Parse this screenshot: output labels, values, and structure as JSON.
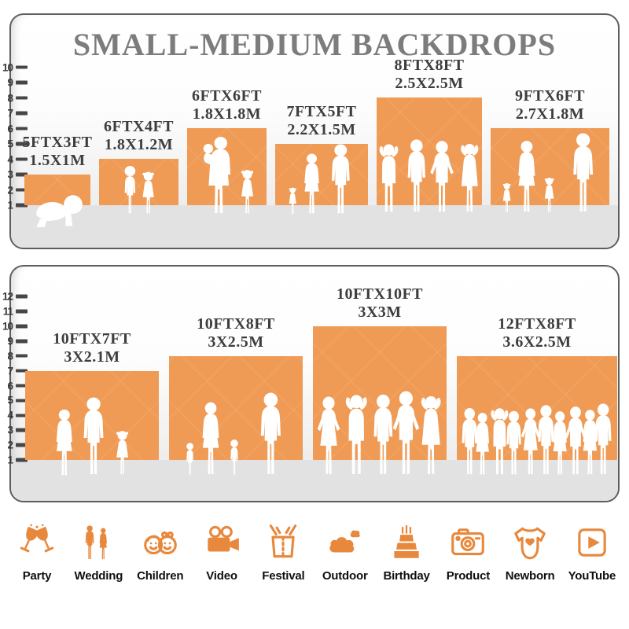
{
  "title": "SMALL-MEDIUM BACKDROPS",
  "colors": {
    "backdrop_orange": "#EF9B55",
    "icon_orange": "#E8883C",
    "title_gray": "#7C7C7C",
    "label_dark": "#3D3D3D"
  },
  "panels": [
    {
      "name": "small-medium-sizes",
      "ruler_ticks": [
        10,
        9,
        8,
        7,
        6,
        5,
        4,
        3,
        2,
        1
      ],
      "backdrops": [
        {
          "size_ft": "5FTX3FT",
          "size_m": "1.5X1M",
          "w_ft": 5,
          "h_ft": 3,
          "people": "crawling-baby"
        },
        {
          "size_ft": "6FTX4FT",
          "size_m": "1.8X1.2M",
          "w_ft": 6,
          "h_ft": 4,
          "people": "two-children"
        },
        {
          "size_ft": "6FTX6FT",
          "size_m": "1.8X1.8M",
          "w_ft": 6,
          "h_ft": 6,
          "people": "mother-with-baby-and-girl"
        },
        {
          "size_ft": "7FTX5FT",
          "size_m": "2.2X1.5M",
          "w_ft": 7,
          "h_ft": 5,
          "people": "family-of-three"
        },
        {
          "size_ft": "8FTX8FT",
          "size_m": "2.5X2.5M",
          "w_ft": 8,
          "h_ft": 8,
          "people": "four-adults"
        },
        {
          "size_ft": "9FTX6FT",
          "size_m": "2.7X1.8M",
          "w_ft": 9,
          "h_ft": 6,
          "people": "family-of-four"
        }
      ]
    },
    {
      "name": "medium-large-sizes",
      "ruler_ticks": [
        12,
        11,
        10,
        9,
        8,
        7,
        6,
        5,
        4,
        3,
        2,
        1
      ],
      "backdrops": [
        {
          "size_ft": "10FTX7FT",
          "size_m": "3X2.1M",
          "w_ft": 10,
          "h_ft": 7,
          "people": "couple-with-girl"
        },
        {
          "size_ft": "10FTX8FT",
          "size_m": "3X2.5M",
          "w_ft": 10,
          "h_ft": 8,
          "people": "family-holding-hands"
        },
        {
          "size_ft": "10FTX10FT",
          "size_m": "3X3M",
          "w_ft": 10,
          "h_ft": 10,
          "people": "five-adults"
        },
        {
          "size_ft": "12FTX8FT",
          "size_m": "3.6X2.5M",
          "w_ft": 12,
          "h_ft": 8,
          "people": "crowd-of-adults"
        }
      ]
    }
  ],
  "categories": [
    {
      "label": "Party",
      "icon": "party-icon"
    },
    {
      "label": "Wedding",
      "icon": "wedding-icon"
    },
    {
      "label": "Children",
      "icon": "children-icon"
    },
    {
      "label": "Video",
      "icon": "video-icon"
    },
    {
      "label": "Festival",
      "icon": "festival-icon"
    },
    {
      "label": "Outdoor",
      "icon": "outdoor-icon"
    },
    {
      "label": "Birthday",
      "icon": "birthday-icon"
    },
    {
      "label": "Product",
      "icon": "product-icon"
    },
    {
      "label": "Newborn",
      "icon": "newborn-icon"
    },
    {
      "label": "YouTube",
      "icon": "youtube-icon"
    }
  ]
}
